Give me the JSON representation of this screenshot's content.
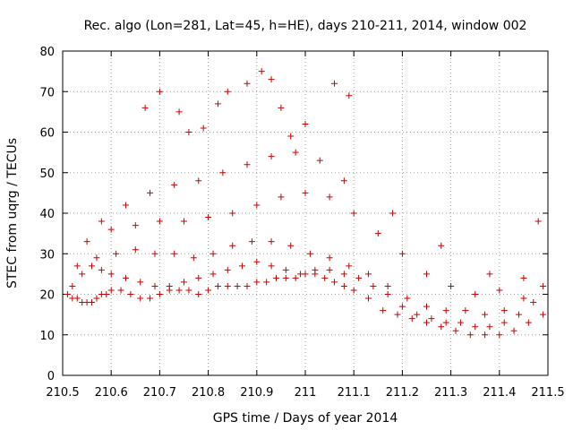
{
  "chart_data": {
    "type": "scatter",
    "title": "Rec. algo (Lon=281, Lat=45, h=HE), days 210-211, 2014, window 002",
    "xlabel": "GPS time / Days of year 2014",
    "ylabel": "STEC from uqrg / TECUs",
    "xlim": [
      210.5,
      211.5
    ],
    "ylim": [
      0,
      80
    ],
    "xticks": [
      210.5,
      210.6,
      210.7,
      210.8,
      210.9,
      211.0,
      211.1,
      211.2,
      211.3,
      211.4,
      211.5
    ],
    "xtick_labels": [
      "210.5",
      "210.6",
      "210.7",
      "210.8",
      "210.9",
      "211",
      "211.1",
      "211.2",
      "211.3",
      "211.4",
      "211.5"
    ],
    "yticks": [
      0,
      10,
      20,
      30,
      40,
      50,
      60,
      70,
      80
    ],
    "ytick_labels": [
      "0",
      "10",
      "20",
      "30",
      "40",
      "50",
      "60",
      "70",
      "80"
    ],
    "grid": true,
    "marker": "+",
    "color": "#cc0000",
    "x": [
      210.51,
      210.52,
      210.53,
      210.54,
      210.55,
      210.56,
      210.57,
      210.58,
      210.59,
      210.6,
      210.62,
      210.64,
      210.66,
      210.68,
      210.7,
      210.72,
      210.74,
      210.76,
      210.78,
      210.8,
      210.82,
      210.84,
      210.86,
      210.88,
      210.9,
      210.92,
      210.94,
      210.96,
      210.98,
      211.0,
      211.02,
      211.04,
      211.06,
      211.08,
      211.1,
      211.13,
      211.16,
      211.19,
      211.22,
      211.25,
      211.28,
      211.31,
      211.34,
      211.37,
      211.4,
      211.43,
      211.46,
      211.49,
      210.52,
      210.54,
      210.56,
      210.58,
      210.6,
      210.63,
      210.66,
      210.69,
      210.72,
      210.75,
      210.78,
      210.81,
      210.84,
      210.87,
      210.9,
      210.93,
      210.96,
      210.99,
      211.02,
      211.05,
      211.08,
      211.11,
      211.14,
      211.17,
      211.2,
      211.23,
      211.26,
      211.29,
      211.32,
      211.35,
      211.38,
      211.41,
      211.44,
      211.47,
      210.53,
      210.57,
      210.61,
      210.65,
      210.69,
      210.73,
      210.77,
      210.81,
      210.85,
      210.89,
      210.93,
      210.97,
      211.01,
      211.05,
      211.09,
      211.13,
      211.17,
      211.21,
      211.25,
      211.29,
      211.33,
      211.37,
      211.41,
      211.45,
      211.49,
      210.55,
      210.6,
      210.65,
      210.7,
      210.75,
      210.8,
      210.85,
      210.9,
      210.95,
      211.0,
      211.05,
      211.1,
      211.15,
      211.2,
      211.25,
      211.3,
      211.35,
      211.4,
      211.45,
      210.58,
      210.63,
      210.68,
      210.73,
      210.78,
      210.83,
      210.88,
      210.93,
      210.98,
      211.03,
      211.08,
      211.18,
      211.28,
      211.38,
      211.48,
      210.67,
      210.7,
      210.74,
      210.79,
      210.84,
      210.88,
      210.91,
      210.93,
      210.95,
      211.06,
      211.09,
      211.0,
      210.97,
      210.82,
      210.76
    ],
    "y": [
      20,
      19,
      19,
      18,
      18,
      18,
      19,
      20,
      20,
      21,
      21,
      20,
      19,
      19,
      20,
      21,
      21,
      21,
      20,
      21,
      22,
      22,
      22,
      22,
      23,
      23,
      24,
      24,
      24,
      25,
      25,
      24,
      23,
      22,
      21,
      19,
      16,
      15,
      14,
      13,
      12,
      11,
      10,
      10,
      10,
      11,
      13,
      15,
      22,
      25,
      27,
      26,
      25,
      24,
      23,
      22,
      22,
      23,
      24,
      25,
      26,
      27,
      28,
      27,
      26,
      25,
      26,
      26,
      25,
      24,
      22,
      20,
      17,
      15,
      14,
      13,
      13,
      12,
      12,
      13,
      15,
      18,
      27,
      29,
      30,
      31,
      30,
      30,
      29,
      30,
      32,
      33,
      33,
      32,
      30,
      29,
      27,
      25,
      22,
      19,
      17,
      16,
      16,
      15,
      16,
      19,
      22,
      33,
      36,
      37,
      38,
      38,
      39,
      40,
      42,
      44,
      45,
      44,
      40,
      35,
      30,
      25,
      22,
      20,
      21,
      24,
      38,
      42,
      45,
      47,
      48,
      50,
      52,
      54,
      55,
      53,
      48,
      40,
      32,
      25,
      38,
      66,
      70,
      65,
      61,
      70,
      72,
      75,
      73,
      66,
      72,
      69,
      62,
      59,
      67,
      60
    ]
  }
}
